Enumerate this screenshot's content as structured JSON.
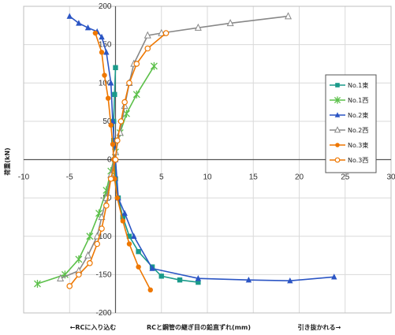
{
  "chart_data": {
    "type": "scatter",
    "title": "",
    "xlabel": "RCと鋼管の継ぎ目の鉛直ずれ(mm)",
    "xlabel_left": "←RCに入り込む",
    "xlabel_right": "引き抜かれる→",
    "ylabel": "荷重(kN)",
    "xlim": [
      -10,
      30
    ],
    "ylim": [
      -200,
      200
    ],
    "x_ticks": [
      -10,
      -5,
      0,
      5,
      10,
      15,
      20,
      25,
      30
    ],
    "y_ticks": [
      -200,
      -150,
      -100,
      -50,
      0,
      50,
      100,
      150,
      200
    ],
    "grid": true,
    "legend_position": "right",
    "series": [
      {
        "name": "No.1東",
        "color": "#1a9a8a",
        "marker": "square",
        "points": [
          [
            0,
            120
          ],
          [
            -0.1,
            85
          ],
          [
            -0.2,
            50
          ],
          [
            -0.2,
            25
          ],
          [
            -0.1,
            0
          ],
          [
            0,
            -25
          ],
          [
            0.3,
            -50
          ],
          [
            0.8,
            -75
          ],
          [
            1.5,
            -100
          ],
          [
            2.5,
            -120
          ],
          [
            4,
            -140
          ],
          [
            5,
            -152
          ],
          [
            7,
            -157
          ],
          [
            9,
            -160
          ]
        ]
      },
      {
        "name": "No.1西",
        "color": "#5cc04a",
        "marker": "star",
        "points": [
          [
            4.2,
            122
          ],
          [
            2.3,
            85
          ],
          [
            1.2,
            60
          ],
          [
            0.5,
            35
          ],
          [
            0,
            10
          ],
          [
            -0.5,
            -15
          ],
          [
            -1,
            -40
          ],
          [
            -1.8,
            -70
          ],
          [
            -2.8,
            -100
          ],
          [
            -4,
            -130
          ],
          [
            -5.5,
            -150
          ],
          [
            -8.5,
            -162
          ]
        ]
      },
      {
        "name": "No.2東",
        "color": "#2b55c4",
        "marker": "triangle",
        "points": [
          [
            -5,
            187
          ],
          [
            -4,
            178
          ],
          [
            -3,
            172
          ],
          [
            -2,
            167
          ],
          [
            -1.5,
            160
          ],
          [
            -1,
            140
          ],
          [
            -0.5,
            100
          ],
          [
            -0.3,
            50
          ],
          [
            0,
            0
          ],
          [
            0.3,
            -50
          ],
          [
            1,
            -70
          ],
          [
            2,
            -100
          ],
          [
            4,
            -142
          ],
          [
            9,
            -155
          ],
          [
            14.5,
            -157
          ],
          [
            19,
            -158
          ],
          [
            23.8,
            -153
          ]
        ]
      },
      {
        "name": "No.2西",
        "color": "#888888",
        "marker": "triangle-open",
        "points": [
          [
            18.8,
            187
          ],
          [
            12.5,
            178
          ],
          [
            9,
            172
          ],
          [
            5,
            165
          ],
          [
            3.5,
            162
          ],
          [
            2,
            125
          ],
          [
            1.5,
            100
          ],
          [
            1,
            70
          ],
          [
            0.5,
            35
          ],
          [
            0,
            10
          ],
          [
            -0.5,
            -20
          ],
          [
            -1,
            -50
          ],
          [
            -1.5,
            -75
          ],
          [
            -2,
            -100
          ],
          [
            -3,
            -125
          ],
          [
            -4,
            -145
          ],
          [
            -6,
            -155
          ]
        ]
      },
      {
        "name": "No.3東",
        "color": "#ee7700",
        "marker": "circle",
        "points": [
          [
            -2.2,
            165
          ],
          [
            -1.5,
            140
          ],
          [
            -1.2,
            110
          ],
          [
            -0.8,
            80
          ],
          [
            -0.5,
            45
          ],
          [
            -0.3,
            20
          ],
          [
            -0.2,
            0
          ],
          [
            -0.1,
            -25
          ],
          [
            0.2,
            -50
          ],
          [
            0.8,
            -80
          ],
          [
            1.5,
            -110
          ],
          [
            2.5,
            -140
          ],
          [
            3.8,
            -170
          ]
        ]
      },
      {
        "name": "No.3西",
        "color": "#ee7700",
        "marker": "circle-open",
        "points": [
          [
            5.5,
            165
          ],
          [
            3.5,
            145
          ],
          [
            2.3,
            125
          ],
          [
            1.5,
            100
          ],
          [
            1,
            75
          ],
          [
            0.6,
            50
          ],
          [
            0.2,
            25
          ],
          [
            0,
            0
          ],
          [
            -0.5,
            -25
          ],
          [
            -1,
            -60
          ],
          [
            -1.5,
            -90
          ],
          [
            -2,
            -110
          ],
          [
            -2.8,
            -135
          ],
          [
            -4,
            -150
          ],
          [
            -5,
            -165
          ]
        ]
      }
    ]
  }
}
